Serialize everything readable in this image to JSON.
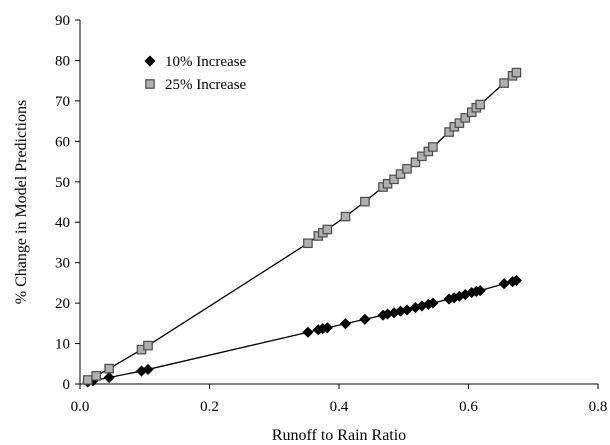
{
  "chart_data": {
    "type": "scatter",
    "title": "",
    "xlabel": "Runoff to Rain Ratio",
    "ylabel": "% Change in Model Predictions",
    "xlim": [
      0.0,
      0.8
    ],
    "ylim": [
      0,
      90
    ],
    "xticks": [
      0.0,
      0.2,
      0.4,
      0.6,
      0.8
    ],
    "xtick_labels": [
      "0.0",
      "0.2",
      "0.4",
      "0.6",
      "0.8"
    ],
    "yticks": [
      0,
      10,
      20,
      30,
      40,
      50,
      60,
      70,
      80,
      90
    ],
    "ytick_labels": [
      "0",
      "10",
      "20",
      "30",
      "40",
      "50",
      "60",
      "70",
      "80",
      "90"
    ],
    "grid": false,
    "legend_position": "top-left",
    "series": [
      {
        "name": "10% Increase",
        "marker": "diamond",
        "color": "#000000",
        "fitted_line": true,
        "points": [
          [
            0.012,
            0.5
          ],
          [
            0.02,
            0.8
          ],
          [
            0.045,
            1.6
          ],
          [
            0.095,
            3.2
          ],
          [
            0.105,
            3.6
          ],
          [
            0.352,
            12.8
          ],
          [
            0.368,
            13.4
          ],
          [
            0.375,
            13.7
          ],
          [
            0.382,
            13.9
          ],
          [
            0.41,
            14.9
          ],
          [
            0.44,
            16.0
          ],
          [
            0.468,
            17.0
          ],
          [
            0.475,
            17.3
          ],
          [
            0.485,
            17.6
          ],
          [
            0.495,
            18.0
          ],
          [
            0.505,
            18.3
          ],
          [
            0.518,
            18.9
          ],
          [
            0.528,
            19.3
          ],
          [
            0.538,
            19.7
          ],
          [
            0.545,
            20.0
          ],
          [
            0.57,
            21.0
          ],
          [
            0.578,
            21.3
          ],
          [
            0.586,
            21.7
          ],
          [
            0.595,
            22.1
          ],
          [
            0.605,
            22.6
          ],
          [
            0.612,
            22.9
          ],
          [
            0.618,
            23.1
          ],
          [
            0.655,
            24.8
          ],
          [
            0.668,
            25.3
          ],
          [
            0.674,
            25.6
          ]
        ]
      },
      {
        "name": "25% Increase",
        "marker": "square",
        "color": "#b0b0b0",
        "fitted_line": true,
        "points": [
          [
            0.012,
            1.0
          ],
          [
            0.025,
            2.0
          ],
          [
            0.045,
            3.8
          ],
          [
            0.095,
            8.5
          ],
          [
            0.105,
            9.5
          ],
          [
            0.352,
            34.8
          ],
          [
            0.368,
            36.6
          ],
          [
            0.375,
            37.4
          ],
          [
            0.382,
            38.2
          ],
          [
            0.41,
            41.4
          ],
          [
            0.44,
            45.1
          ],
          [
            0.468,
            48.7
          ],
          [
            0.475,
            49.5
          ],
          [
            0.485,
            50.6
          ],
          [
            0.495,
            51.9
          ],
          [
            0.505,
            53.2
          ],
          [
            0.518,
            54.8
          ],
          [
            0.528,
            56.3
          ],
          [
            0.538,
            57.5
          ],
          [
            0.545,
            58.6
          ],
          [
            0.57,
            62.3
          ],
          [
            0.578,
            63.6
          ],
          [
            0.586,
            64.5
          ],
          [
            0.595,
            65.8
          ],
          [
            0.605,
            67.2
          ],
          [
            0.612,
            68.3
          ],
          [
            0.618,
            69.1
          ],
          [
            0.655,
            74.4
          ],
          [
            0.668,
            76.2
          ],
          [
            0.674,
            77.0
          ]
        ]
      }
    ]
  }
}
